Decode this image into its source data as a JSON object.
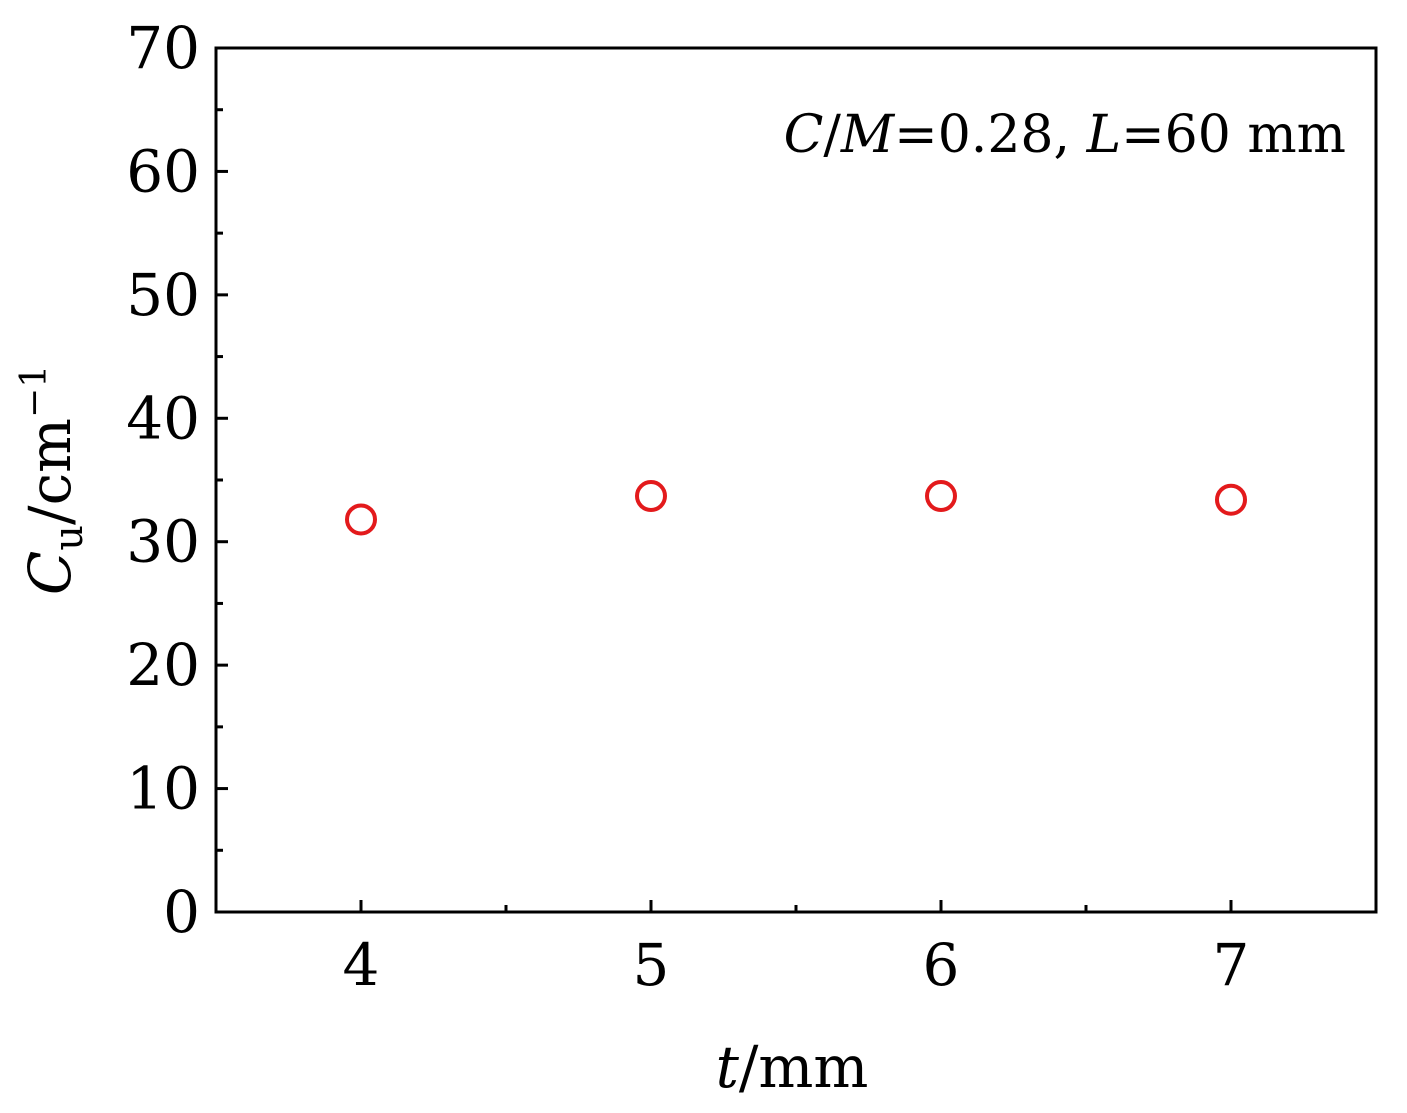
{
  "chart_data": {
    "type": "scatter",
    "x": [
      4,
      5,
      6,
      7
    ],
    "y": [
      31.8,
      33.7,
      33.7,
      33.4
    ],
    "xlim": [
      3.5,
      7.5
    ],
    "ylim": [
      0,
      70
    ],
    "x_ticks": [
      4,
      5,
      6,
      7
    ],
    "x_tick_labels": [
      "4",
      "5",
      "6",
      "7"
    ],
    "y_ticks": [
      0,
      10,
      20,
      30,
      40,
      50,
      60,
      70
    ],
    "y_tick_labels": [
      "0",
      "10",
      "20",
      "30",
      "40",
      "50",
      "60",
      "70"
    ],
    "xlabel": {
      "var": "t",
      "unit": "/mm"
    },
    "ylabel": {
      "var": "C",
      "subscript": "u",
      "unit": "/cm",
      "superscript": "−1"
    },
    "annotation": {
      "var1": "C",
      "sep": "/",
      "var2": "M",
      "value1": "=0.28, ",
      "var3": "L",
      "value2": "=60 mm"
    },
    "marker": "open-circle",
    "marker_color": "#e31a1c",
    "grid": false,
    "legend": "none"
  }
}
